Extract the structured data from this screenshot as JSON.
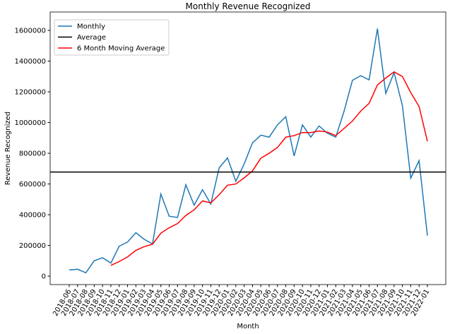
{
  "chart_data": {
    "type": "line",
    "title": "Monthly Revenue Recognized",
    "x_label": "Month",
    "y_label": "Revenue Recognized",
    "categories": [
      "2018-06",
      "2018-07",
      "2018-08",
      "2018-09",
      "2018-10",
      "2018-11",
      "2018-12",
      "2019-01",
      "2019-02",
      "2019-03",
      "2019-04",
      "2019-05",
      "2019-06",
      "2019-07",
      "2019-08",
      "2019-09",
      "2019-10",
      "2019-11",
      "2019-12",
      "2020-01",
      "2020-02",
      "2020-03",
      "2020-04",
      "2020-05",
      "2020-06",
      "2020-07",
      "2020-08",
      "2020-09",
      "2020-10",
      "2020-11",
      "2020-12",
      "2021-01",
      "2021-02",
      "2021-03",
      "2021-04",
      "2021-05",
      "2021-06",
      "2021-07",
      "2021-08",
      "2021-09",
      "2021-10",
      "2021-11",
      "2021-12",
      "2022-01"
    ],
    "series": [
      {
        "name": "Monthly",
        "color": "#1f77b4",
        "values": [
          40000,
          45000,
          22000,
          100000,
          120000,
          85000,
          195000,
          222000,
          283000,
          240000,
          210000,
          535000,
          390000,
          382000,
          595000,
          462000,
          563000,
          470000,
          705000,
          770000,
          618000,
          730000,
          868000,
          918000,
          905000,
          985000,
          1038000,
          782000,
          985000,
          905000,
          978000,
          930000,
          905000,
          1075000,
          1275000,
          1305000,
          1278000,
          1612000,
          1190000,
          1325000,
          1110000,
          638000,
          752000,
          264000
        ]
      },
      {
        "name": "6 Month Moving Average",
        "color": "#ff0000",
        "values": [
          null,
          null,
          null,
          null,
          null,
          70000,
          95000,
          125000,
          168000,
          192000,
          208000,
          280000,
          315000,
          342000,
          395000,
          432000,
          490000,
          477000,
          530000,
          592000,
          600000,
          640000,
          685000,
          768000,
          800000,
          838000,
          905000,
          915000,
          935000,
          935000,
          945000,
          938000,
          915000,
          962000,
          1010000,
          1075000,
          1125000,
          1245000,
          1290000,
          1330000,
          1300000,
          1195000,
          1105000,
          878000
        ]
      }
    ],
    "average": {
      "name": "Average",
      "value": 678000,
      "color": "#000000"
    },
    "ylim": [
      -55000,
      1720000
    ],
    "yticks": [
      0,
      200000,
      400000,
      600000,
      800000,
      1000000,
      1200000,
      1400000,
      1600000
    ],
    "legend": "upper left"
  }
}
